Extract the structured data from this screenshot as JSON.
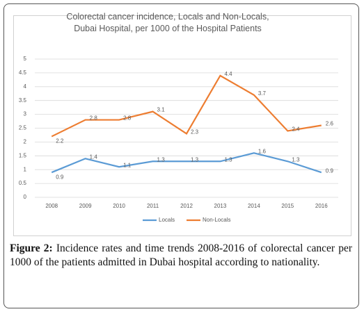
{
  "chart_data": {
    "type": "line",
    "title": "Colorectal cancer incidence, Locals and Non-Locals, Dubai Hospital, per 1000 of the Hospital Patients",
    "categories": [
      "2008",
      "2009",
      "2010",
      "2011",
      "2012",
      "2013",
      "2014",
      "2015",
      "2016"
    ],
    "series": [
      {
        "name": "Locals",
        "color": "#5b9bd5",
        "values": [
          0.9,
          1.4,
          1.1,
          1.3,
          1.3,
          1.3,
          1.6,
          1.3,
          0.9
        ]
      },
      {
        "name": "Non-Locals",
        "color": "#ed7d31",
        "values": [
          2.2,
          2.8,
          2.8,
          3.1,
          2.3,
          4.4,
          3.7,
          2.4,
          2.6
        ]
      }
    ],
    "ylim": [
      0,
      5
    ],
    "yticks": [
      0,
      0.5,
      1,
      1.5,
      2,
      2.5,
      3,
      3.5,
      4,
      4.5,
      5
    ],
    "grid": true,
    "legend": "bottom",
    "data_labels": true
  },
  "caption": {
    "label": "Figure 2:",
    "text": "Incidence rates and time trends 2008-2016 of colorectal cancer per 1000 of the patients admitted in Dubai hospital according to nationality."
  }
}
